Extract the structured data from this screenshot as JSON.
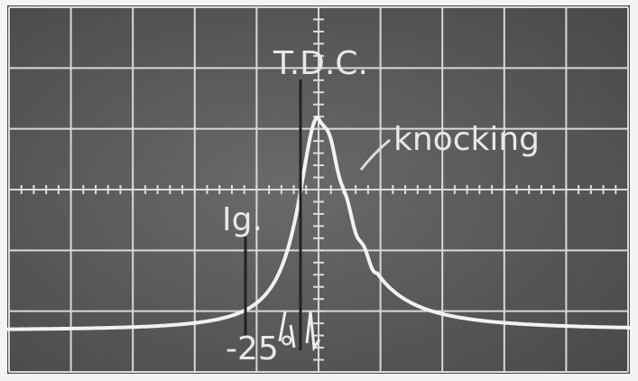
{
  "annotations": {
    "tdc": "T.D.C.",
    "knocking": "knocking",
    "ignition": "Ig.",
    "angle": "-25°"
  }
}
